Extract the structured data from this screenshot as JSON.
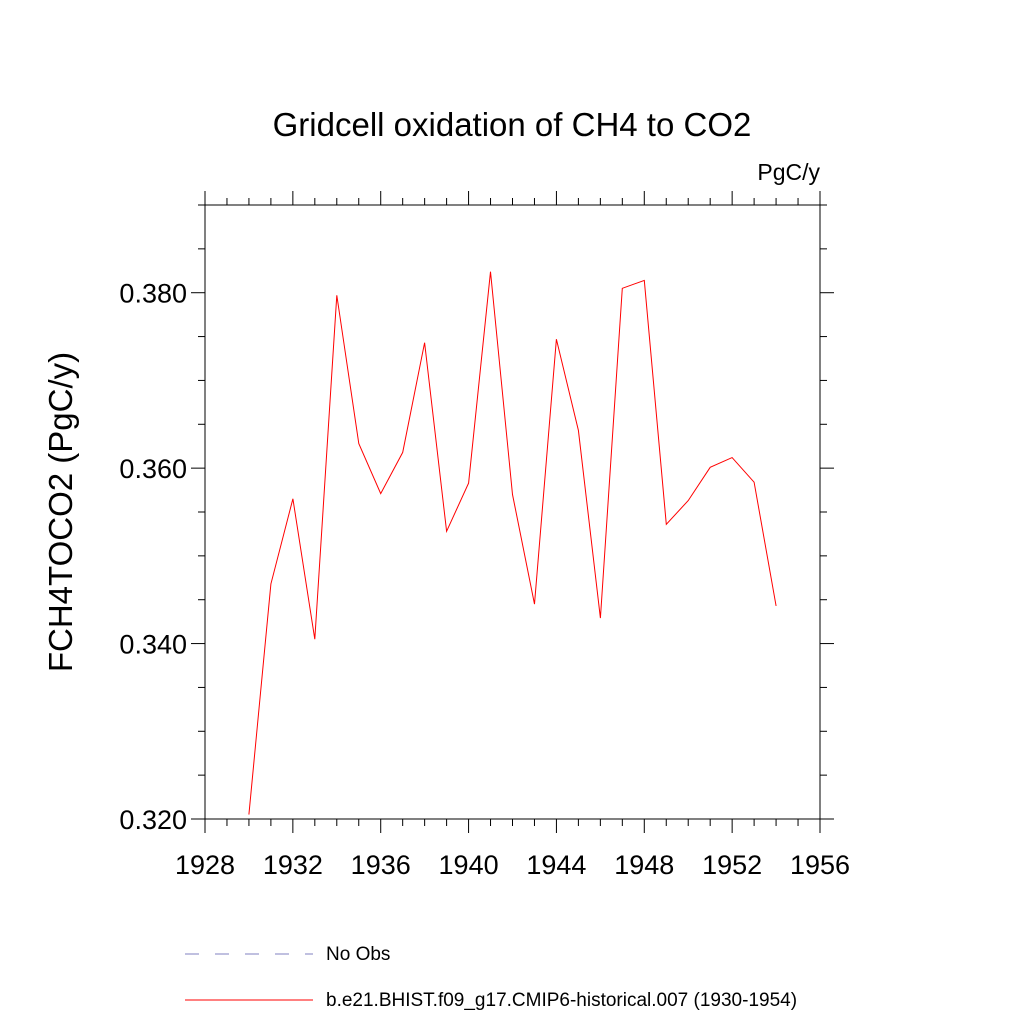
{
  "chart_data": {
    "type": "line",
    "title": "Gridcell oxidation of CH4 to CO2",
    "units_label": "PgC/y",
    "ylabel": "FCH4TOCO2  (PgC/y)",
    "xlabel": "",
    "xlim": [
      1928,
      1956
    ],
    "ylim": [
      0.32,
      0.39
    ],
    "x_ticks": [
      1928,
      1932,
      1936,
      1940,
      1944,
      1948,
      1952,
      1956
    ],
    "x_tick_labels": [
      "1928",
      "1932",
      "1936",
      "1940",
      "1944",
      "1948",
      "1952",
      "1956"
    ],
    "x_minor_step": 1,
    "y_ticks": [
      0.32,
      0.34,
      0.36,
      0.38
    ],
    "y_tick_labels": [
      "0.320",
      "0.340",
      "0.360",
      "0.380"
    ],
    "y_minor_step": 0.005,
    "grid": false,
    "series": [
      {
        "name": "b.e21.BHIST.f09_g17.CMIP6-historical.007 (1930-1954)",
        "color": "#ff0000",
        "style": "solid",
        "x": [
          1930,
          1931,
          1932,
          1933,
          1934,
          1935,
          1936,
          1937,
          1938,
          1939,
          1940,
          1941,
          1942,
          1943,
          1944,
          1945,
          1946,
          1947,
          1948,
          1949,
          1950,
          1951,
          1952,
          1953,
          1954
        ],
        "values": [
          0.3205,
          0.3468,
          0.3565,
          0.3405,
          0.3797,
          0.3628,
          0.3571,
          0.3618,
          0.3743,
          0.3528,
          0.3583,
          0.3824,
          0.357,
          0.3445,
          0.3747,
          0.3643,
          0.3429,
          0.3805,
          0.3814,
          0.3536,
          0.3563,
          0.3601,
          0.3612,
          0.3584,
          0.3443
        ]
      }
    ],
    "legend": {
      "position": "bottom-center",
      "entries": [
        {
          "label": "No Obs",
          "color": "#8080c0",
          "style": "dashed"
        },
        {
          "label": "b.e21.BHIST.f09_g17.CMIP6-historical.007 (1930-1954)",
          "color": "#ff0000",
          "style": "solid"
        }
      ]
    }
  }
}
